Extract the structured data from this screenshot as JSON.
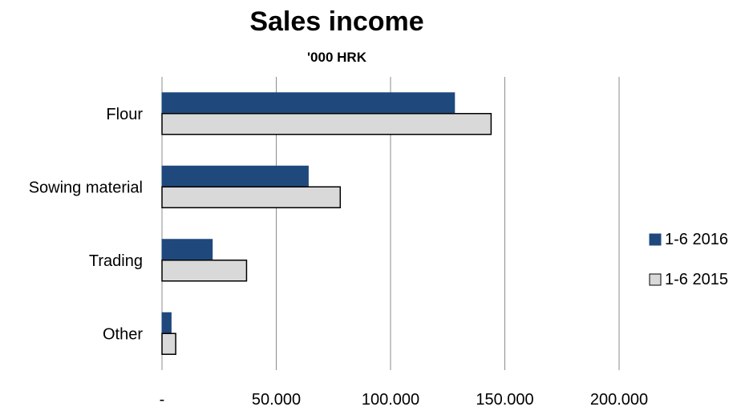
{
  "chart_data": {
    "type": "bar",
    "orientation": "horizontal",
    "title": "Sales income",
    "subtitle": "'000 HRK",
    "categories": [
      "Flour",
      "Sowing material",
      "Trading",
      "Other"
    ],
    "series": [
      {
        "name": "1-6 2016",
        "color": "#1F497D",
        "values": [
          128000,
          64000,
          22000,
          4000
        ]
      },
      {
        "name": "1-6 2015",
        "color": "#D9D9D9",
        "values": [
          144000,
          78000,
          37000,
          6000
        ]
      }
    ],
    "x_ticks": [
      "-",
      "50.000",
      "100.000",
      "150.000",
      "200.000"
    ],
    "x_tick_values": [
      0,
      50000,
      100000,
      150000,
      200000
    ],
    "xlim": [
      0,
      200000
    ],
    "grid": "vertical",
    "legend_position": "right"
  }
}
